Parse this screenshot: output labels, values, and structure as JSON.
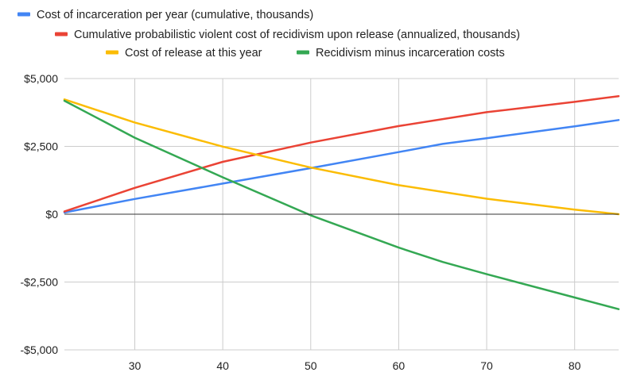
{
  "chart_data": {
    "type": "line",
    "title": "",
    "xlabel": "",
    "ylabel": "",
    "xlim": [
      22,
      85
    ],
    "ylim": [
      -5000,
      5000
    ],
    "x_ticks": [
      30,
      40,
      50,
      60,
      70,
      80
    ],
    "x_tick_labels": [
      "30",
      "40",
      "50",
      "60",
      "70",
      "80"
    ],
    "y_ticks": [
      5000,
      2500,
      0,
      -2500,
      -5000
    ],
    "y_tick_labels": [
      "$5,000",
      "$2,500",
      "$0",
      "-$2,500",
      "-$5,000"
    ],
    "grid": true,
    "legend_position": "top",
    "series": [
      {
        "name": "Cost of incarceration per year (cumulative, thousands)",
        "color": "#4285f4",
        "x": [
          22,
          30,
          40,
          50,
          60,
          65,
          70,
          80,
          85
        ],
        "values": [
          60,
          560,
          1130,
          1700,
          2290,
          2590,
          2800,
          3240,
          3470
        ]
      },
      {
        "name": "Cumulative probabilistic violent cost of recidivism upon release (annualized, thousands)",
        "color": "#ea4335",
        "x": [
          22,
          30,
          40,
          50,
          60,
          70,
          80,
          85
        ],
        "values": [
          100,
          970,
          1930,
          2640,
          3250,
          3760,
          4140,
          4350
        ]
      },
      {
        "name": "Cost of release at this year",
        "color": "#fbbc04",
        "x": [
          22,
          30,
          40,
          50,
          60,
          70,
          80,
          85
        ],
        "values": [
          4230,
          3380,
          2490,
          1720,
          1070,
          570,
          170,
          0
        ]
      },
      {
        "name": "Recidivism minus incarceration costs",
        "color": "#34a853",
        "x": [
          22,
          30,
          40,
          50,
          60,
          65,
          70,
          80,
          85
        ],
        "values": [
          4180,
          2820,
          1360,
          -40,
          -1230,
          -1760,
          -2210,
          -3070,
          -3500
        ]
      }
    ]
  }
}
